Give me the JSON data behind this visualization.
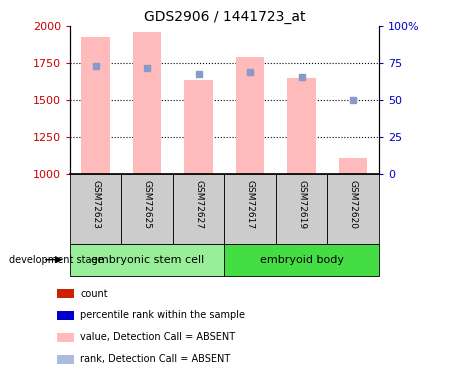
{
  "title": "GDS2906 / 1441723_at",
  "samples": [
    "GSM72623",
    "GSM72625",
    "GSM72627",
    "GSM72617",
    "GSM72619",
    "GSM72620"
  ],
  "group_labels": [
    "embryonic stem cell",
    "embryoid body"
  ],
  "group_splits": [
    0,
    3,
    6
  ],
  "bar_values": [
    1930,
    1960,
    1640,
    1790,
    1650,
    1110
  ],
  "rank_values": [
    73,
    72,
    68,
    69,
    66,
    50
  ],
  "ylim_left": [
    1000,
    2000
  ],
  "ylim_right": [
    0,
    100
  ],
  "yticks_left": [
    1000,
    1250,
    1500,
    1750,
    2000
  ],
  "yticks_right": [
    0,
    25,
    50,
    75,
    100
  ],
  "bar_color": "#ffbbbb",
  "rank_color": "#8899cc",
  "left_tick_color": "#cc0000",
  "right_tick_color": "#0000cc",
  "sample_bg_color": "#cccccc",
  "group_colors": [
    "#99ee99",
    "#44dd44"
  ],
  "legend_items": [
    {
      "color": "#cc2200",
      "label": "count"
    },
    {
      "color": "#0000cc",
      "label": "percentile rank within the sample"
    },
    {
      "color": "#ffbbbb",
      "label": "value, Detection Call = ABSENT"
    },
    {
      "color": "#aabbdd",
      "label": "rank, Detection Call = ABSENT"
    }
  ],
  "dev_stage_label": "development stage"
}
